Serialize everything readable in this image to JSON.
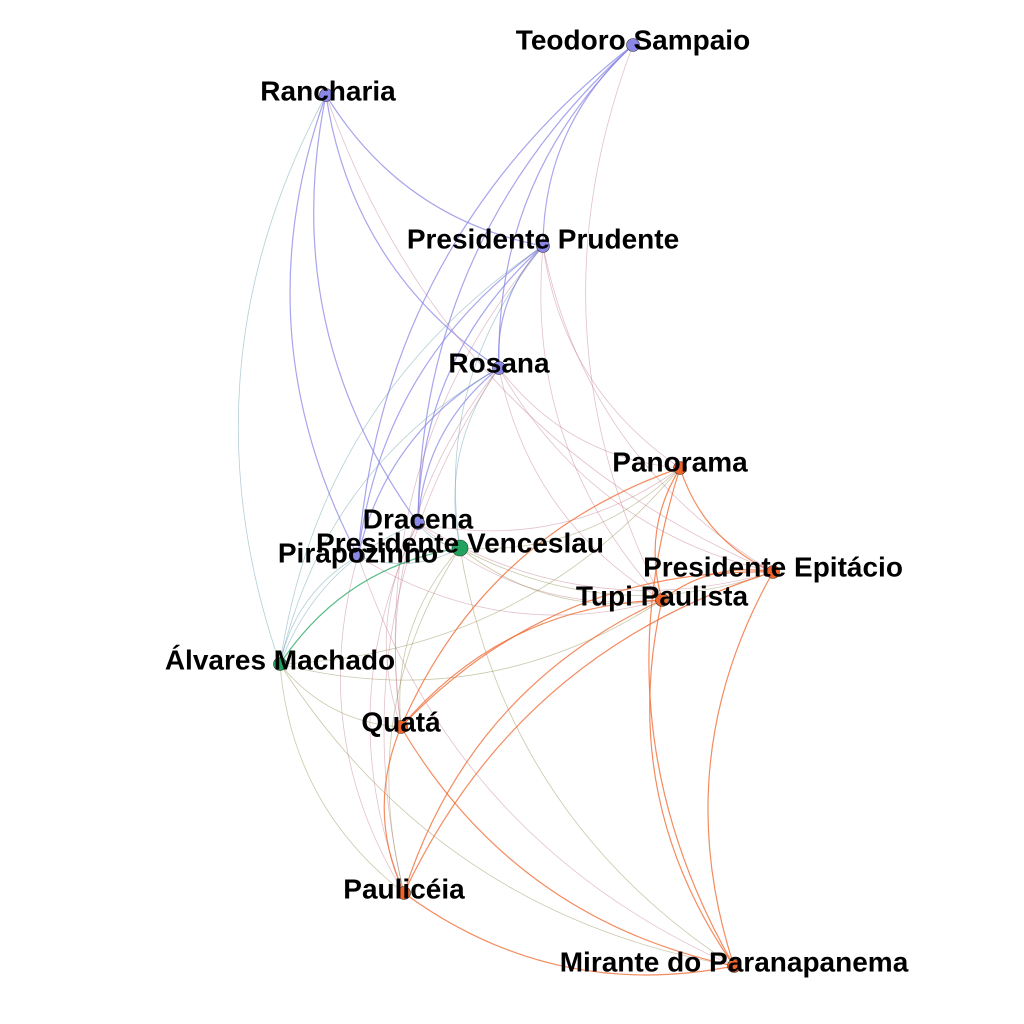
{
  "colors": {
    "purple": "#8b87e6",
    "green": "#21a35f",
    "orange": "#f0642a"
  },
  "nodes": [
    {
      "id": "teodoro",
      "label": "Teodoro Sampaio",
      "group": "purple"
    },
    {
      "id": "rancharia",
      "label": "Rancharia",
      "group": "purple"
    },
    {
      "id": "prudente",
      "label": "Presidente Prudente",
      "group": "purple"
    },
    {
      "id": "rosana",
      "label": "Rosana",
      "group": "purple"
    },
    {
      "id": "dracena",
      "label": "Dracena",
      "group": "purple"
    },
    {
      "id": "pirapozinho",
      "label": "Pirapozinho",
      "group": "purple"
    },
    {
      "id": "venceslau",
      "label": "Presidente Venceslau",
      "group": "green"
    },
    {
      "id": "alvares",
      "label": "Álvares Machado",
      "group": "green"
    },
    {
      "id": "panorama",
      "label": "Panorama",
      "group": "orange"
    },
    {
      "id": "epitacio",
      "label": "Presidente Epitácio",
      "group": "orange"
    },
    {
      "id": "tupi",
      "label": "Tupi Paulista",
      "group": "orange"
    },
    {
      "id": "quata",
      "label": "Quatá",
      "group": "orange"
    },
    {
      "id": "pauliceia",
      "label": "Paulicéia",
      "group": "orange"
    },
    {
      "id": "mirante",
      "label": "Mirante do Paranapanema",
      "group": "orange"
    }
  ],
  "edges": [
    [
      "teodoro",
      "prudente"
    ],
    [
      "teodoro",
      "rosana"
    ],
    [
      "teodoro",
      "dracena"
    ],
    [
      "teodoro",
      "tupi"
    ],
    [
      "teodoro",
      "pirapozinho"
    ],
    [
      "rancharia",
      "prudente"
    ],
    [
      "rancharia",
      "rosana"
    ],
    [
      "rancharia",
      "alvares"
    ],
    [
      "rancharia",
      "pirapozinho"
    ],
    [
      "rancharia",
      "dracena"
    ],
    [
      "rancharia",
      "epitacio"
    ],
    [
      "prudente",
      "rosana"
    ],
    [
      "prudente",
      "dracena"
    ],
    [
      "prudente",
      "pirapozinho"
    ],
    [
      "prudente",
      "alvares"
    ],
    [
      "prudente",
      "venceslau"
    ],
    [
      "prudente",
      "panorama"
    ],
    [
      "prudente",
      "epitacio"
    ],
    [
      "prudente",
      "tupi"
    ],
    [
      "prudente",
      "quata"
    ],
    [
      "rosana",
      "dracena"
    ],
    [
      "rosana",
      "pirapozinho"
    ],
    [
      "rosana",
      "alvares"
    ],
    [
      "rosana",
      "venceslau"
    ],
    [
      "rosana",
      "panorama"
    ],
    [
      "rosana",
      "epitacio"
    ],
    [
      "rosana",
      "tupi"
    ],
    [
      "rosana",
      "quata"
    ],
    [
      "rosana",
      "pauliceia"
    ],
    [
      "dracena",
      "venceslau"
    ],
    [
      "dracena",
      "panorama"
    ],
    [
      "dracena",
      "epitacio"
    ],
    [
      "dracena",
      "tupi"
    ],
    [
      "dracena",
      "quata"
    ],
    [
      "dracena",
      "alvares"
    ],
    [
      "dracena",
      "pauliceia"
    ],
    [
      "pirapozinho",
      "venceslau"
    ],
    [
      "pirapozinho",
      "alvares"
    ],
    [
      "pirapozinho",
      "tupi"
    ],
    [
      "pirapozinho",
      "pauliceia"
    ],
    [
      "pirapozinho",
      "mirante"
    ],
    [
      "venceslau",
      "alvares"
    ],
    [
      "venceslau",
      "panorama"
    ],
    [
      "venceslau",
      "epitacio"
    ],
    [
      "venceslau",
      "tupi"
    ],
    [
      "venceslau",
      "quata"
    ],
    [
      "venceslau",
      "pauliceia"
    ],
    [
      "venceslau",
      "mirante"
    ],
    [
      "alvares",
      "quata"
    ],
    [
      "alvares",
      "pauliceia"
    ],
    [
      "alvares",
      "tupi"
    ],
    [
      "alvares",
      "panorama"
    ],
    [
      "alvares",
      "mirante"
    ],
    [
      "panorama",
      "epitacio"
    ],
    [
      "panorama",
      "tupi"
    ],
    [
      "panorama",
      "quata"
    ],
    [
      "panorama",
      "mirante"
    ],
    [
      "epitacio",
      "tupi"
    ],
    [
      "epitacio",
      "quata"
    ],
    [
      "epitacio",
      "pauliceia"
    ],
    [
      "epitacio",
      "mirante"
    ],
    [
      "tupi",
      "quata"
    ],
    [
      "tupi",
      "pauliceia"
    ],
    [
      "tupi",
      "mirante"
    ],
    [
      "quata",
      "pauliceia"
    ],
    [
      "quata",
      "mirante"
    ],
    [
      "pauliceia",
      "mirante"
    ]
  ]
}
